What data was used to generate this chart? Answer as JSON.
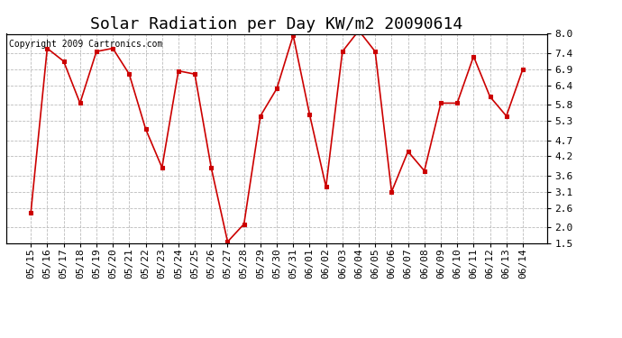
{
  "title": "Solar Radiation per Day KW/m2 20090614",
  "copyright": "Copyright 2009 Cartronics.com",
  "labels": [
    "05/15",
    "05/16",
    "05/17",
    "05/18",
    "05/19",
    "05/20",
    "05/21",
    "05/22",
    "05/23",
    "05/24",
    "05/25",
    "05/26",
    "05/27",
    "05/28",
    "05/29",
    "05/30",
    "05/31",
    "06/01",
    "06/02",
    "06/03",
    "06/04",
    "06/05",
    "06/06",
    "06/07",
    "06/08",
    "06/09",
    "06/10",
    "06/11",
    "06/12",
    "06/13",
    "06/14"
  ],
  "values": [
    2.45,
    7.55,
    7.15,
    5.85,
    7.45,
    7.55,
    6.75,
    5.05,
    3.85,
    6.85,
    6.75,
    3.85,
    1.55,
    2.1,
    5.45,
    6.3,
    7.95,
    5.5,
    3.25,
    7.45,
    8.1,
    7.45,
    3.1,
    4.35,
    3.75,
    5.85,
    5.85,
    7.3,
    6.05,
    5.45,
    6.9
  ],
  "line_color": "#cc0000",
  "marker": "s",
  "marker_color": "#cc0000",
  "marker_size": 3,
  "bg_color": "#ffffff",
  "plot_bg_color": "#ffffff",
  "grid_color": "#bbbbbb",
  "ylim": [
    1.5,
    8.0
  ],
  "yticks": [
    1.5,
    2.0,
    2.6,
    3.1,
    3.6,
    4.2,
    4.7,
    5.3,
    5.8,
    6.4,
    6.9,
    7.4,
    8.0
  ],
  "title_fontsize": 13,
  "tick_fontsize": 8,
  "copyright_fontsize": 7
}
